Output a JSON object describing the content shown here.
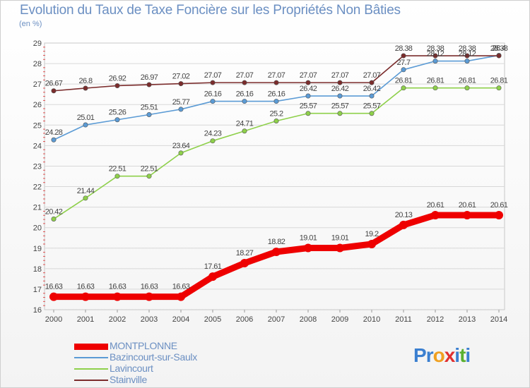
{
  "title": "Evolution du Taux de Taxe Foncière sur les Propriétés Non Bâties",
  "unit_label": "(en %)",
  "logo": {
    "text": "Proxiti",
    "letters": [
      "P",
      "r",
      "o",
      "x",
      "i",
      "t",
      "i"
    ],
    "colors": [
      "#3a7fd0",
      "#3a7fd0",
      "#f0a020",
      "#e03030",
      "#3a7fd0",
      "#5ab030",
      "#3a7fd0"
    ]
  },
  "chart_data": {
    "type": "line",
    "title": "Evolution du Taux de Taxe Foncière sur les Propriétés Non Bâties",
    "ylabel": "(en %)",
    "xlabel": "",
    "ylim": [
      16,
      29
    ],
    "yticks": [
      "16",
      "17",
      "18",
      "19",
      "20",
      "21",
      "22",
      "23",
      "24",
      "25",
      "26",
      "27",
      "28",
      "29"
    ],
    "categories": [
      "2000",
      "2001",
      "2002",
      "2003",
      "2004",
      "2005",
      "2006",
      "2007",
      "2008",
      "2009",
      "2010",
      "2011",
      "2012",
      "2013",
      "2014"
    ],
    "series": [
      {
        "name": "MONTPLONNE",
        "color": "#ee0000",
        "thick": true,
        "values": [
          16.63,
          16.63,
          16.63,
          16.63,
          16.63,
          17.61,
          18.27,
          18.82,
          19.01,
          19.01,
          19.2,
          20.13,
          20.61,
          20.61,
          20.61
        ],
        "labels": [
          "16.63",
          "16.63",
          "16.63",
          "16.63",
          "16.63",
          "17.61",
          "18.27",
          "18.82",
          "19.01",
          "19.01",
          "19.2",
          "20.13",
          "20.61",
          "20.61",
          "20.61"
        ]
      },
      {
        "name": "Bazincourt-sur-Saulx",
        "color": "#5b9bd5",
        "thick": false,
        "values": [
          24.28,
          25.01,
          25.26,
          25.51,
          25.77,
          26.16,
          26.16,
          26.16,
          26.42,
          26.42,
          26.42,
          27.7,
          28.12,
          28.12,
          28.4
        ],
        "labels": [
          "24.28",
          "25.01",
          "25.26",
          "25.51",
          "25.77",
          "26.16",
          "26.16",
          "26.16",
          "26.42",
          "26.42",
          "26.42",
          "27.7",
          "28.12",
          "28.12",
          "28.4"
        ]
      },
      {
        "name": "Lavincourt",
        "color": "#8ed04a",
        "thick": false,
        "values": [
          20.42,
          21.44,
          22.51,
          22.51,
          23.64,
          24.23,
          24.71,
          25.2,
          25.57,
          25.57,
          25.57,
          26.81,
          26.81,
          26.81,
          26.81
        ],
        "labels": [
          "20.42",
          "21.44",
          "22.51",
          "22.51",
          "23.64",
          "24.23",
          "24.71",
          "25.2",
          "25.57",
          "25.57",
          "25.57",
          "26.81",
          "26.81",
          "26.81",
          "26.81"
        ]
      },
      {
        "name": "Stainville",
        "color": "#7b2c2c",
        "thick": false,
        "values": [
          26.67,
          26.8,
          26.92,
          26.97,
          27.02,
          27.07,
          27.07,
          27.07,
          27.07,
          27.07,
          27.07,
          28.38,
          28.38,
          28.38,
          28.38
        ],
        "labels": [
          "26.67",
          "26.8",
          "26.92",
          "26.97",
          "27.02",
          "27.07",
          "27.07",
          "27.07",
          "27.07",
          "27.07",
          "27.07",
          "28.38",
          "28.38",
          "28.38",
          "28.38"
        ]
      }
    ],
    "legend_position": "bottom-left"
  }
}
